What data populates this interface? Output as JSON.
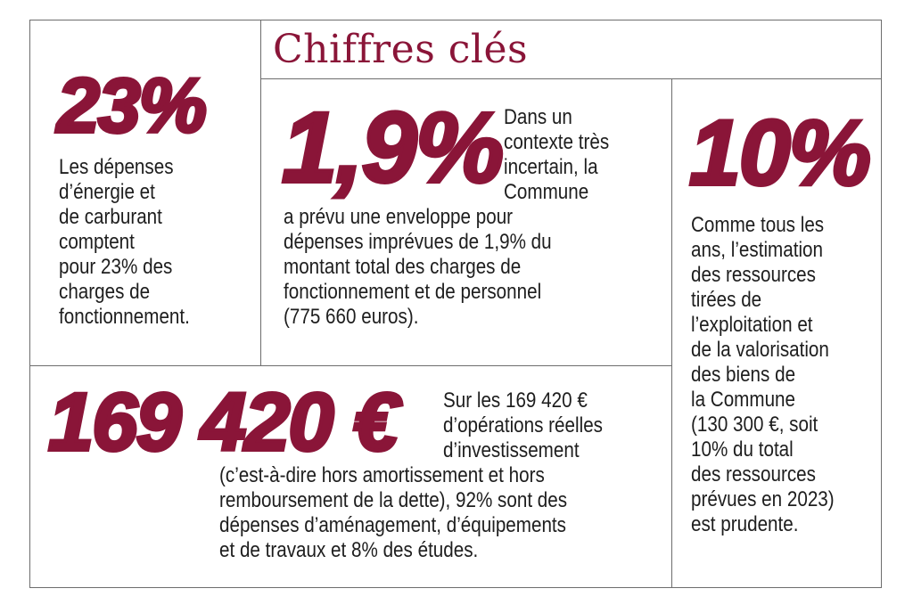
{
  "title": "Chiffres clés",
  "accent_color": "#8a1538",
  "energy": {
    "figure": "23%",
    "lines": [
      "Les dépenses",
      "d’énergie et",
      "de carburant",
      "comptent",
      "pour 23% des",
      "charges de",
      "fonctionnement."
    ]
  },
  "unforeseen": {
    "figure": "1,9%",
    "side_lines": [
      "Dans un",
      "contexte très",
      "incertain, la",
      "Commune"
    ],
    "lines": [
      "a prévu une enveloppe pour",
      "dépenses imprévues de 1,9% du",
      "montant total des charges de",
      "fonctionnement et de personnel",
      "(775 660 euros)."
    ]
  },
  "resources": {
    "figure": "10%",
    "lines": [
      "Comme tous les",
      "ans, l’estimation",
      "des ressources",
      "tirées de",
      "l’exploitation et",
      "de la valorisation",
      "des biens de",
      "la Commune",
      "(130 300 €, soit",
      "10% du total",
      "des ressources",
      "prévues en 2023)",
      "est prudente."
    ]
  },
  "investment": {
    "figure": "169 420 €",
    "side_lines": [
      "Sur les 169 420 €",
      "d’opérations réelles",
      "d’investissement"
    ],
    "lines": [
      "(c’est-à-dire hors amortissement et hors",
      "remboursement de la dette), 92% sont des",
      "dépenses d’aménagement, d’équipements",
      "et de travaux et 8% des études."
    ]
  }
}
